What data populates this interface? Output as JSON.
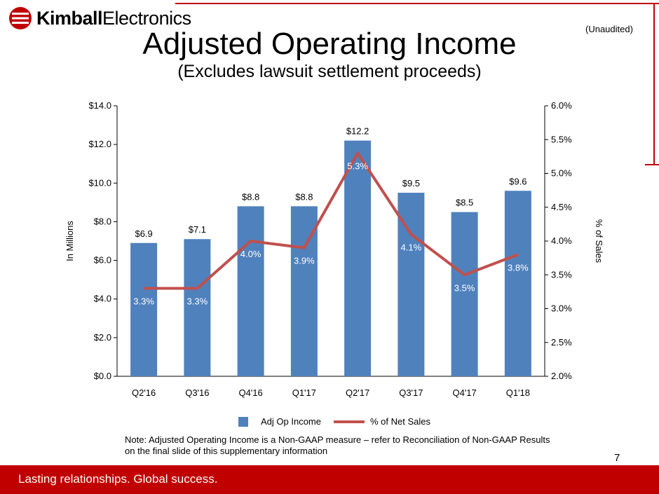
{
  "header": {
    "logo_word": "Kimball",
    "logo_sub": "Electronics",
    "unaudited": "(Unaudited)",
    "title": "Adjusted Operating Income",
    "subtitle": "(Excludes lawsuit settlement proceeds)"
  },
  "colors": {
    "brand_red": "#c00000",
    "bar_blue": "#4f81bd",
    "line_red": "#c0504d"
  },
  "chart_data": {
    "type": "bar",
    "categories": [
      "Q2'16",
      "Q3'16",
      "Q4'16",
      "Q1'17",
      "Q2'17",
      "Q3'17",
      "Q4'17",
      "Q1'18"
    ],
    "ylabel": "In Millions",
    "y2label": "% of Sales",
    "ylim": [
      0,
      14
    ],
    "y2lim": [
      2.0,
      6.0
    ],
    "yticks": [
      "$0.0",
      "$2.0",
      "$4.0",
      "$6.0",
      "$8.0",
      "$10.0",
      "$12.0",
      "$14.0"
    ],
    "y2ticks": [
      "2.0%",
      "2.5%",
      "3.0%",
      "3.5%",
      "4.0%",
      "4.5%",
      "5.0%",
      "5.5%",
      "6.0%"
    ],
    "legend_position": "bottom",
    "series": [
      {
        "name": "Adj Op Income",
        "type": "bar",
        "axis": "left",
        "values": [
          6.9,
          7.1,
          8.8,
          8.8,
          12.2,
          9.5,
          8.5,
          9.6
        ],
        "labels": [
          "$6.9",
          "$7.1",
          "$8.8",
          "$8.8",
          "$12.2",
          "$9.5",
          "$8.5",
          "$9.6"
        ]
      },
      {
        "name": "% of Net Sales",
        "type": "line",
        "axis": "right",
        "values": [
          3.3,
          3.3,
          4.0,
          3.9,
          5.3,
          4.1,
          3.5,
          3.8
        ],
        "labels": [
          "3.3%",
          "3.3%",
          "4.0%",
          "3.9%",
          "5.3%",
          "4.1%",
          "3.5%",
          "3.8%"
        ]
      }
    ]
  },
  "legend": {
    "bar_label": "Adj Op Income",
    "line_label": "% of Net Sales"
  },
  "note": {
    "line1": "Note:  Adjusted Operating Income is a Non-GAAP measure – refer to Reconciliation of Non-GAAP Results",
    "line2": "on the final slide of this supplementary information"
  },
  "footer": {
    "page_number": "7",
    "tagline": "Lasting relationships. Global success."
  }
}
